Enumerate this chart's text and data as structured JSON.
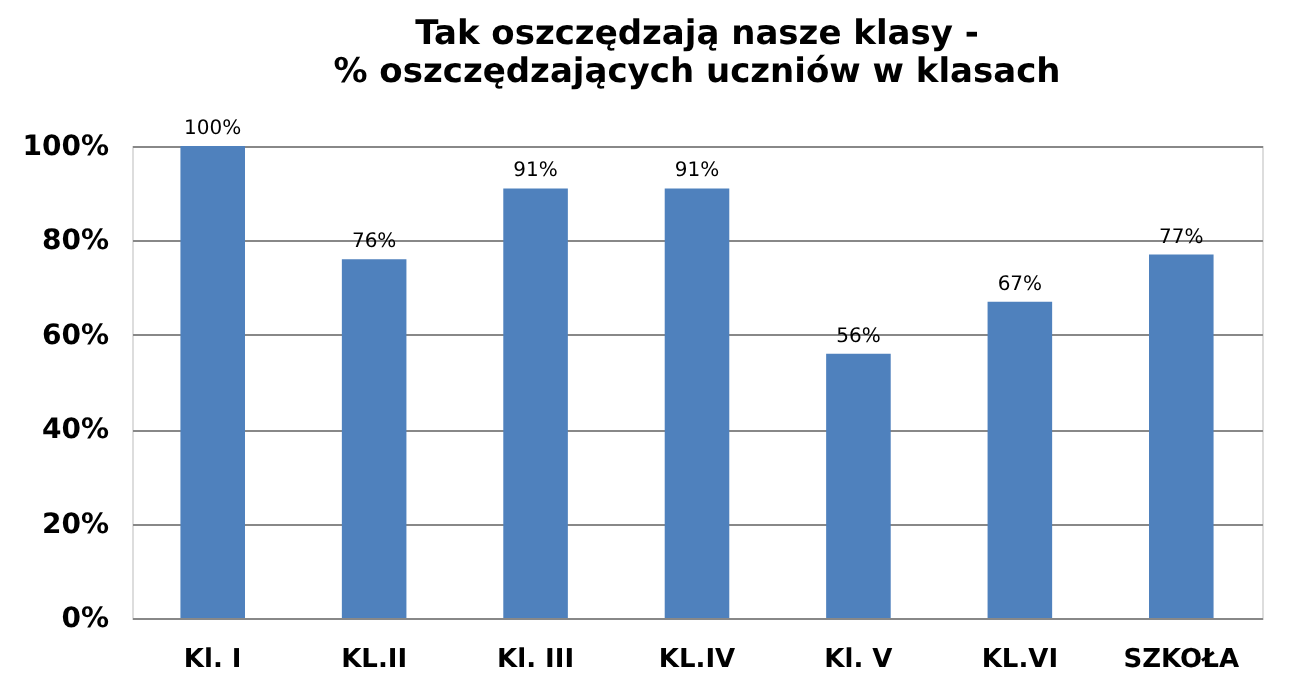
{
  "chart_data": {
    "type": "bar",
    "title": [
      "Tak oszczędzają nasze klasy -",
      "% oszczędzających uczniów w klasach"
    ],
    "categories": [
      "Kl. I",
      "KL.II",
      "Kl. III",
      "KL.IV",
      "Kl. V",
      "KL.VI",
      "SZKOŁA"
    ],
    "values": [
      100,
      76,
      91,
      91,
      56,
      67,
      77
    ],
    "value_labels": [
      "100%",
      "76%",
      "91%",
      "91%",
      "56%",
      "67%",
      "77%"
    ],
    "color": "#4f81bd",
    "ylim": [
      0,
      100
    ],
    "yticks": [
      {
        "value": 0,
        "label": "0%"
      },
      {
        "value": 20,
        "label": "20%"
      },
      {
        "value": 40,
        "label": "40%"
      },
      {
        "value": 60,
        "label": "60%"
      },
      {
        "value": 80,
        "label": "80%"
      },
      {
        "value": 100,
        "label": "100%"
      }
    ],
    "grid": "y"
  }
}
